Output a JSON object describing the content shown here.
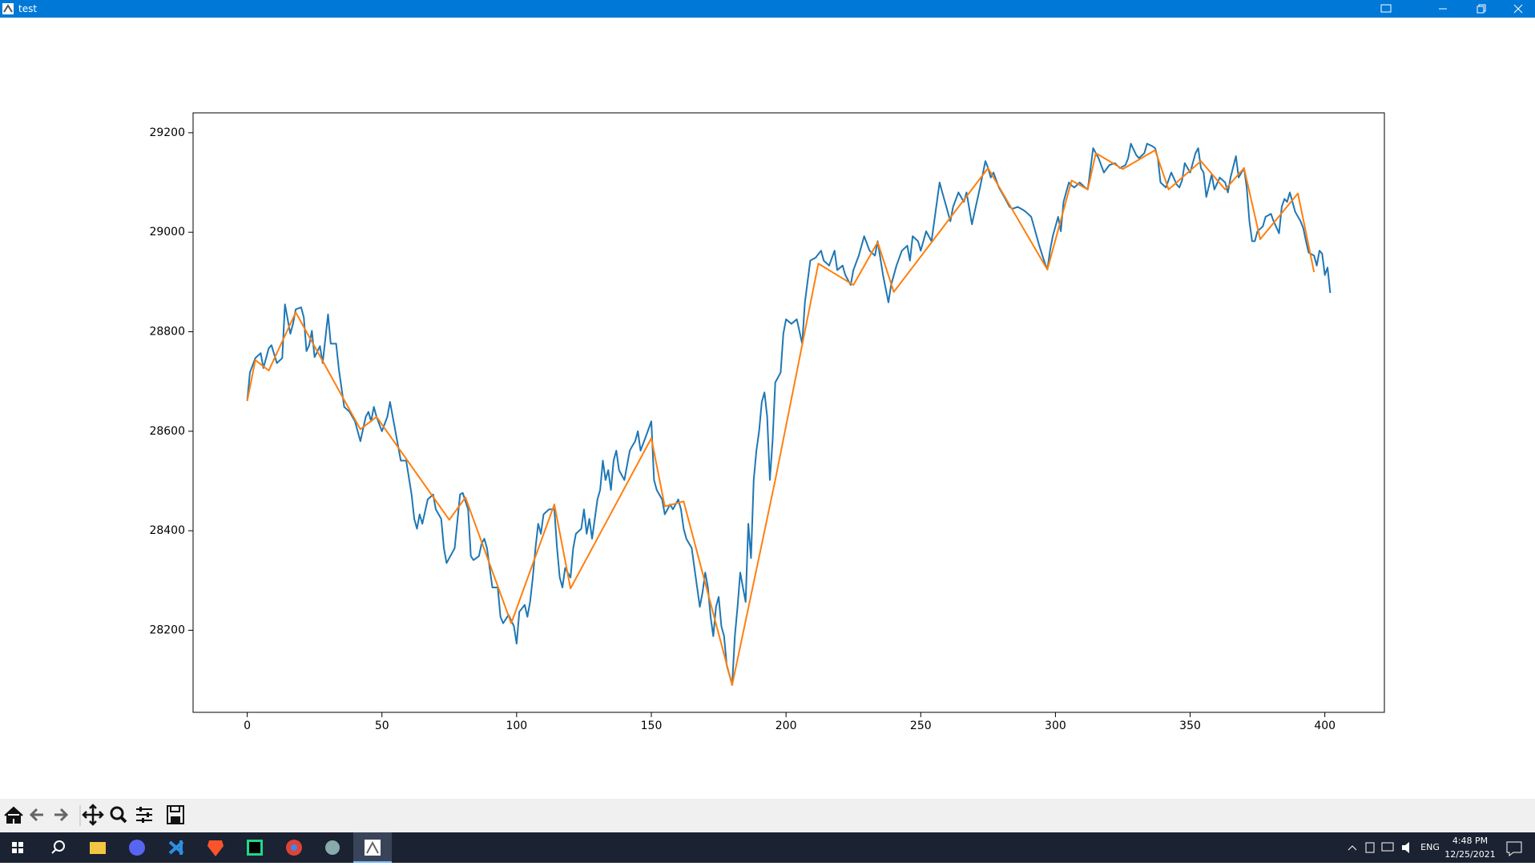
{
  "window": {
    "title": "test"
  },
  "taskbar": {
    "language": "ENG",
    "time": "4:48 PM",
    "date": "12/25/2021"
  },
  "chart_data": {
    "type": "line",
    "xlim": [
      -20.1,
      422.1
    ],
    "ylim": [
      28035,
      29240
    ],
    "xticks": [
      0,
      50,
      100,
      150,
      200,
      250,
      300,
      350,
      400
    ],
    "yticks": [
      28200,
      28400,
      28600,
      28800,
      29000,
      29200
    ],
    "grid": false,
    "series": [
      {
        "color": "#1f77b4",
        "x": [
          0,
          1,
          3,
          5,
          6,
          8,
          9,
          11,
          13,
          14,
          16,
          17,
          18,
          20,
          21,
          22,
          23,
          24,
          25,
          27,
          28,
          30,
          31,
          33,
          34,
          36,
          38,
          40,
          42,
          44,
          45,
          46,
          47,
          48,
          50,
          52,
          53,
          55,
          57,
          59,
          61,
          62,
          63,
          64,
          65,
          67,
          69,
          70,
          72,
          73,
          74,
          75,
          77,
          79,
          80,
          82,
          83,
          84,
          86,
          87,
          88,
          89,
          90,
          91,
          93,
          94,
          95,
          97,
          99,
          100,
          101,
          103,
          104,
          105,
          106,
          107,
          108,
          109,
          110,
          112,
          114,
          115,
          116,
          117,
          118,
          120,
          121,
          122,
          124,
          125,
          126,
          127,
          128,
          130,
          131,
          132,
          133,
          134,
          135,
          136,
          137,
          138,
          140,
          142,
          143,
          144,
          145,
          146,
          148,
          150,
          151,
          152,
          154,
          155,
          157,
          158,
          160,
          161,
          162,
          163,
          165,
          166,
          167,
          168,
          169,
          170,
          171,
          172,
          173,
          174,
          175,
          176,
          177,
          178,
          179,
          180,
          181,
          182,
          183,
          184,
          185,
          186,
          187,
          188,
          189,
          190,
          191,
          192,
          193,
          194,
          195,
          196,
          198,
          199,
          200,
          202,
          204,
          206,
          207,
          209,
          211,
          213,
          214,
          216,
          218,
          219,
          221,
          222,
          224,
          225,
          227,
          229,
          231,
          233,
          234,
          236,
          238,
          239,
          241,
          243,
          245,
          246,
          247,
          249,
          250,
          252,
          254,
          256,
          257,
          258,
          259,
          261,
          262,
          264,
          266,
          267,
          269,
          270,
          272,
          274,
          275,
          276,
          277,
          279,
          281,
          283,
          284,
          286,
          288,
          289,
          291,
          292,
          294,
          296,
          297,
          298,
          299,
          301,
          302,
          303,
          305,
          306,
          307,
          309,
          311,
          312,
          314,
          315,
          316,
          318,
          320,
          322,
          324,
          326,
          327,
          328,
          330,
          331,
          333,
          334,
          336,
          337,
          338,
          339,
          341,
          343,
          345,
          346,
          347,
          348,
          350,
          352,
          353,
          354,
          355,
          356,
          358,
          359,
          361,
          363,
          364,
          365,
          367,
          368,
          370,
          371,
          372,
          373,
          374,
          375,
          377,
          378,
          380,
          381,
          383,
          384,
          385,
          386,
          387,
          389,
          391,
          392,
          393,
          394,
          396,
          397,
          398,
          399,
          400,
          401,
          402
        ],
        "values": [
          28661,
          28718,
          28747,
          28757,
          28727,
          28767,
          28773,
          28737,
          28747,
          28855,
          28796,
          28816,
          28845,
          28849,
          28829,
          28761,
          28773,
          28802,
          28749,
          28771,
          28737,
          28835,
          28776,
          28776,
          28725,
          28649,
          28639,
          28620,
          28580,
          28629,
          28639,
          28620,
          28649,
          28629,
          28600,
          28629,
          28659,
          28600,
          28541,
          28541,
          28473,
          28424,
          28404,
          28433,
          28414,
          28463,
          28473,
          28443,
          28424,
          28365,
          28335,
          28345,
          28365,
          28473,
          28476,
          28443,
          28349,
          28341,
          28349,
          28374,
          28384,
          28365,
          28325,
          28286,
          28286,
          28227,
          28214,
          28231,
          28208,
          28173,
          28237,
          28251,
          28227,
          28257,
          28306,
          28365,
          28414,
          28394,
          28433,
          28443,
          28443,
          28365,
          28306,
          28286,
          28325,
          28306,
          28365,
          28394,
          28404,
          28443,
          28394,
          28424,
          28384,
          28463,
          28482,
          28541,
          28502,
          28522,
          28482,
          28541,
          28561,
          28522,
          28502,
          28561,
          28571,
          28580,
          28600,
          28561,
          28590,
          28620,
          28502,
          28482,
          28463,
          28433,
          28453,
          28443,
          28463,
          28443,
          28404,
          28384,
          28365,
          28325,
          28286,
          28247,
          28276,
          28316,
          28286,
          28227,
          28188,
          28247,
          28267,
          28208,
          28188,
          28129,
          28110,
          28090,
          28188,
          28247,
          28316,
          28286,
          28257,
          28414,
          28345,
          28502,
          28561,
          28600,
          28659,
          28678,
          28629,
          28502,
          28580,
          28698,
          28718,
          28796,
          28825,
          28816,
          28825,
          28776,
          28859,
          28943,
          28949,
          28963,
          28943,
          28933,
          28963,
          28924,
          28933,
          28914,
          28894,
          28924,
          28953,
          28992,
          28963,
          28953,
          28982,
          28914,
          28859,
          28894,
          28933,
          28963,
          28973,
          28943,
          28992,
          28982,
          28963,
          29002,
          28982,
          29061,
          29100,
          29080,
          29061,
          29022,
          29051,
          29080,
          29061,
          29080,
          29016,
          29041,
          29090,
          29143,
          29129,
          29110,
          29120,
          29090,
          29071,
          29051,
          29047,
          29051,
          29045,
          29041,
          29031,
          29012,
          28973,
          28939,
          28925,
          28963,
          28992,
          29031,
          29002,
          29061,
          29100,
          29094,
          29090,
          29100,
          29090,
          29086,
          29169,
          29159,
          29149,
          29120,
          29135,
          29139,
          29129,
          29135,
          29149,
          29178,
          29155,
          29149,
          29159,
          29178,
          29173,
          29169,
          29149,
          29100,
          29090,
          29120,
          29096,
          29090,
          29104,
          29139,
          29120,
          29159,
          29169,
          29129,
          29120,
          29071,
          29116,
          29086,
          29110,
          29100,
          29080,
          29110,
          29153,
          29110,
          29129,
          29090,
          29022,
          28982,
          28982,
          29002,
          29012,
          29031,
          29037,
          29022,
          28998,
          29051,
          29067,
          29061,
          29080,
          29041,
          29022,
          29008,
          28982,
          28959,
          28953,
          28933,
          28963,
          28957,
          28914,
          28929,
          28878
        ]
      },
      {
        "color": "#ff7f0e",
        "x": [
          0,
          3,
          8,
          18,
          28,
          42,
          48,
          75,
          81,
          98,
          114,
          120,
          150,
          155,
          162,
          180,
          196,
          212,
          225,
          234,
          240,
          275,
          297,
          306,
          312,
          315,
          325,
          337,
          342,
          354,
          363,
          370,
          376,
          390,
          396
        ],
        "values": [
          28661,
          28743,
          28722,
          28839,
          28741,
          28604,
          28629,
          28422,
          28467,
          28214,
          28453,
          28284,
          28586,
          28449,
          28459,
          28090,
          28502,
          28937,
          28894,
          28980,
          28880,
          29129,
          28925,
          29104,
          29086,
          29159,
          29127,
          29165,
          29086,
          29143,
          29086,
          29129,
          28986,
          29078,
          28920
        ]
      }
    ]
  }
}
